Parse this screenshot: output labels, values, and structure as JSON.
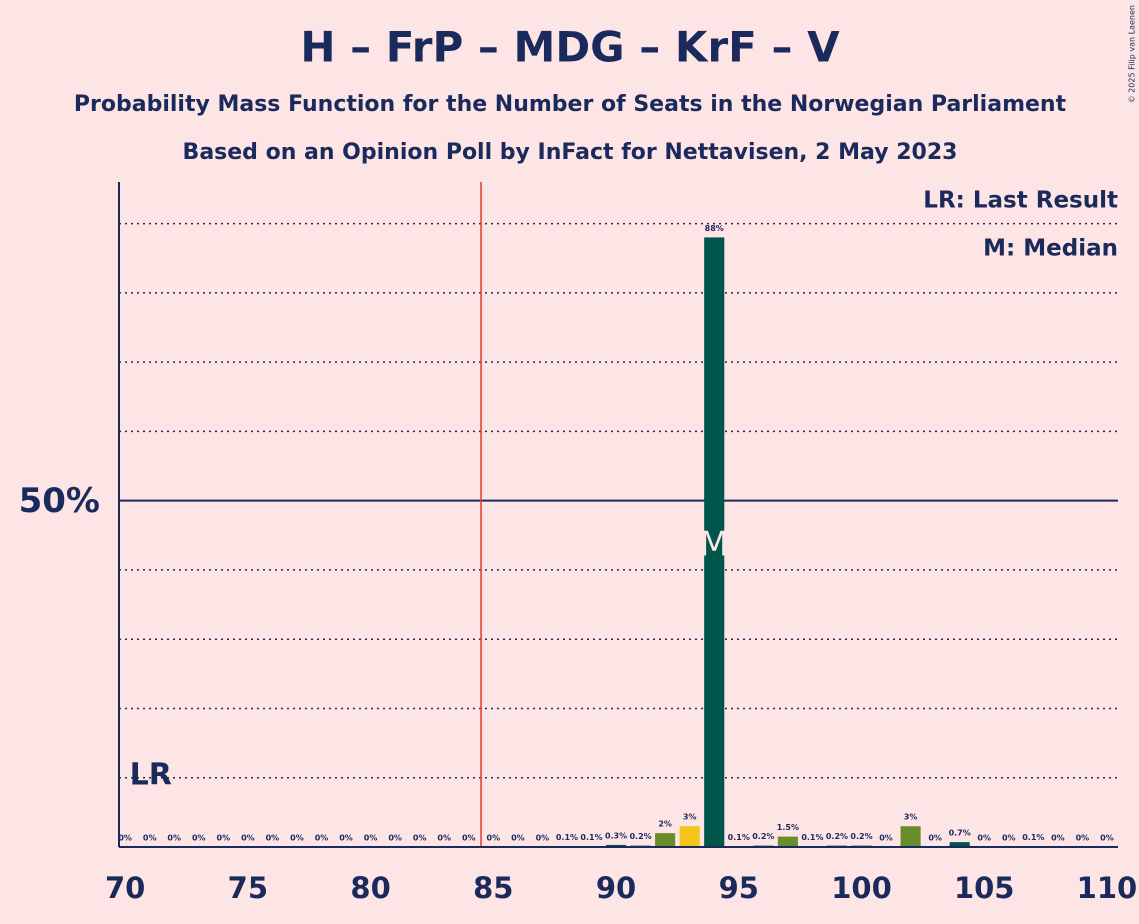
{
  "chart_data": {
    "type": "bar",
    "title": "H – FrP – MDG – KrF – V",
    "subtitle": [
      "Probability Mass Function for the Number of Seats in the Norwegian Parliament",
      "Based on an Opinion Poll by InFact for Nettavisen, 2 May 2023"
    ],
    "copyright": "© 2025 Filip van Laenen",
    "legend": [
      "LR: Last Result",
      "M: Median"
    ],
    "x": [
      70,
      71,
      72,
      73,
      74,
      75,
      76,
      77,
      78,
      79,
      80,
      81,
      82,
      83,
      84,
      85,
      86,
      87,
      88,
      89,
      90,
      91,
      92,
      93,
      94,
      95,
      96,
      97,
      98,
      99,
      100,
      101,
      102,
      103,
      104,
      105,
      106,
      107,
      108,
      109,
      110
    ],
    "values": [
      0,
      0,
      0,
      0,
      0,
      0,
      0,
      0,
      0,
      0,
      0,
      0,
      0,
      0,
      0,
      0,
      0,
      0,
      0.1,
      0.1,
      0.3,
      0.2,
      2,
      3,
      88,
      0.1,
      0.2,
      1.5,
      0.1,
      0.2,
      0.2,
      0,
      3,
      0,
      0.7,
      0,
      0,
      0.1,
      0,
      0,
      0
    ],
    "value_labels": [
      "0%",
      "0%",
      "0%",
      "0%",
      "0%",
      "0%",
      "0%",
      "0%",
      "0%",
      "0%",
      "0%",
      "0%",
      "0%",
      "0%",
      "0%",
      "0%",
      "0%",
      "0%",
      "0.1%",
      "0.1%",
      "0.3%",
      "0.2%",
      "2%",
      "3%",
      "88%",
      "0.1%",
      "0.2%",
      "1.5%",
      "0.1%",
      "0.2%",
      "0.2%",
      "0%",
      "3%",
      "0%",
      "0.7%",
      "0%",
      "0%",
      "0.1%",
      "0%",
      "0%",
      "0%"
    ],
    "colors": [
      "#00564a",
      "#00564a",
      "#00564a",
      "#00564a",
      "#00564a",
      "#00564a",
      "#00564a",
      "#00564a",
      "#00564a",
      "#00564a",
      "#00564a",
      "#00564a",
      "#00564a",
      "#00564a",
      "#00564a",
      "#00564a",
      "#00564a",
      "#00564a",
      "#00564a",
      "#00564a",
      "#00564a",
      "#00564a",
      "#6a8d2b",
      "#f6c519",
      "#00564a",
      "#00564a",
      "#00564a",
      "#6a8d2b",
      "#00564a",
      "#00564a",
      "#00564a",
      "#00564a",
      "#6a8d2b",
      "#00564a",
      "#00564a",
      "#00564a",
      "#00564a",
      "#00564a",
      "#00564a",
      "#00564a",
      "#00564a"
    ],
    "xlim": [
      69.75,
      110.45
    ],
    "xticks": [
      70,
      75,
      80,
      85,
      90,
      95,
      100,
      105,
      110
    ],
    "ylim": [
      0,
      96
    ],
    "yticks": [
      {
        "value": 50,
        "label": "50%"
      }
    ],
    "minor_gridlines": [
      10,
      20,
      30,
      40,
      60,
      70,
      80,
      90
    ],
    "threshold_line": {
      "x": 84.5,
      "color": "#e0392b"
    },
    "last_result": {
      "label": "LR",
      "x": 71
    },
    "median": {
      "label": "M",
      "x": 94
    }
  }
}
